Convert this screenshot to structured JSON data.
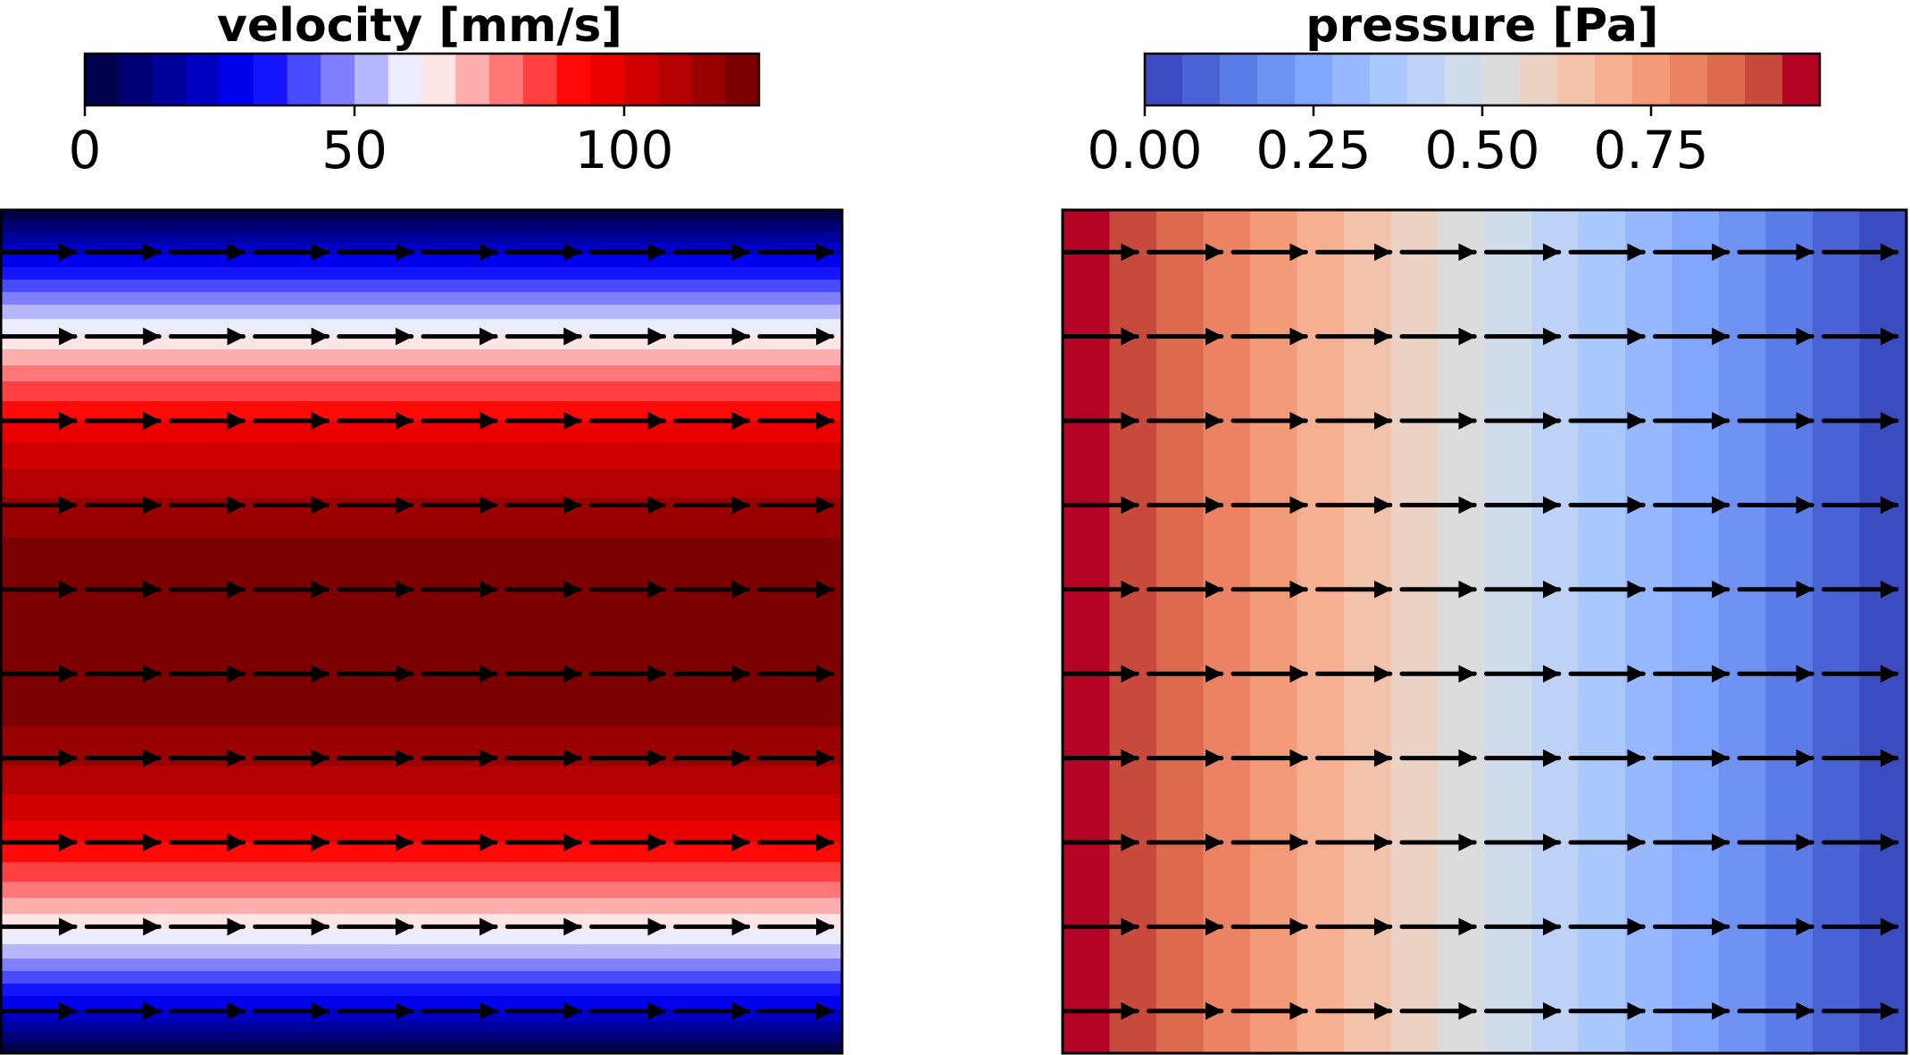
{
  "chart_data": [
    {
      "type": "heatmap",
      "field": "velocity",
      "colorbar": {
        "title": "velocity [mm/s]",
        "range": [
          0,
          125
        ],
        "levels": 20,
        "ticks": [
          0,
          50,
          100
        ],
        "tick_labels": [
          "0",
          "50",
          "100"
        ],
        "colormap": "seismic",
        "colors": [
          "#00004c",
          "#000074",
          "#00009c",
          "#0000c4",
          "#0000ec",
          "#1414ff",
          "#4a4aff",
          "#8080ff",
          "#b6b6ff",
          "#ececff",
          "#ffe6e6",
          "#ffaeae",
          "#ff7777",
          "#ff4040",
          "#ff0909",
          "#eb0000",
          "#d00000",
          "#b40000",
          "#990000",
          "#7d0000"
        ]
      },
      "flow_profile": "parabolic",
      "max_velocity": 125,
      "x_range": [
        0,
        1
      ],
      "y_range": [
        0,
        1
      ],
      "quiver": {
        "rows": 10,
        "cols": 10,
        "direction": "+x"
      }
    },
    {
      "type": "heatmap",
      "field": "pressure",
      "colorbar": {
        "title": "pressure [Pa]",
        "range": [
          0,
          1
        ],
        "levels": 18,
        "ticks": [
          0,
          0.25,
          0.5,
          0.75
        ],
        "tick_labels": [
          "0.00",
          "0.25",
          "0.50",
          "0.75"
        ],
        "colormap": "coolwarm",
        "colors": [
          "#3b4cc0",
          "#4a63d4",
          "#5b7be6",
          "#6e91f2",
          "#82a6fb",
          "#97b8ff",
          "#abc8fd",
          "#bed2f6",
          "#d0dbec",
          "#dddcdc",
          "#ebd2c4",
          "#f3c2aa",
          "#f6af91",
          "#f39a79",
          "#ea8263",
          "#db6a4f",
          "#c84a3d",
          "#b40426"
        ]
      },
      "gradient": "linear decreasing along +x",
      "max_pressure": 1,
      "x_range": [
        0,
        1
      ],
      "y_range": [
        0,
        1
      ],
      "quiver": {
        "rows": 10,
        "cols": 10,
        "direction": "+x"
      }
    }
  ]
}
